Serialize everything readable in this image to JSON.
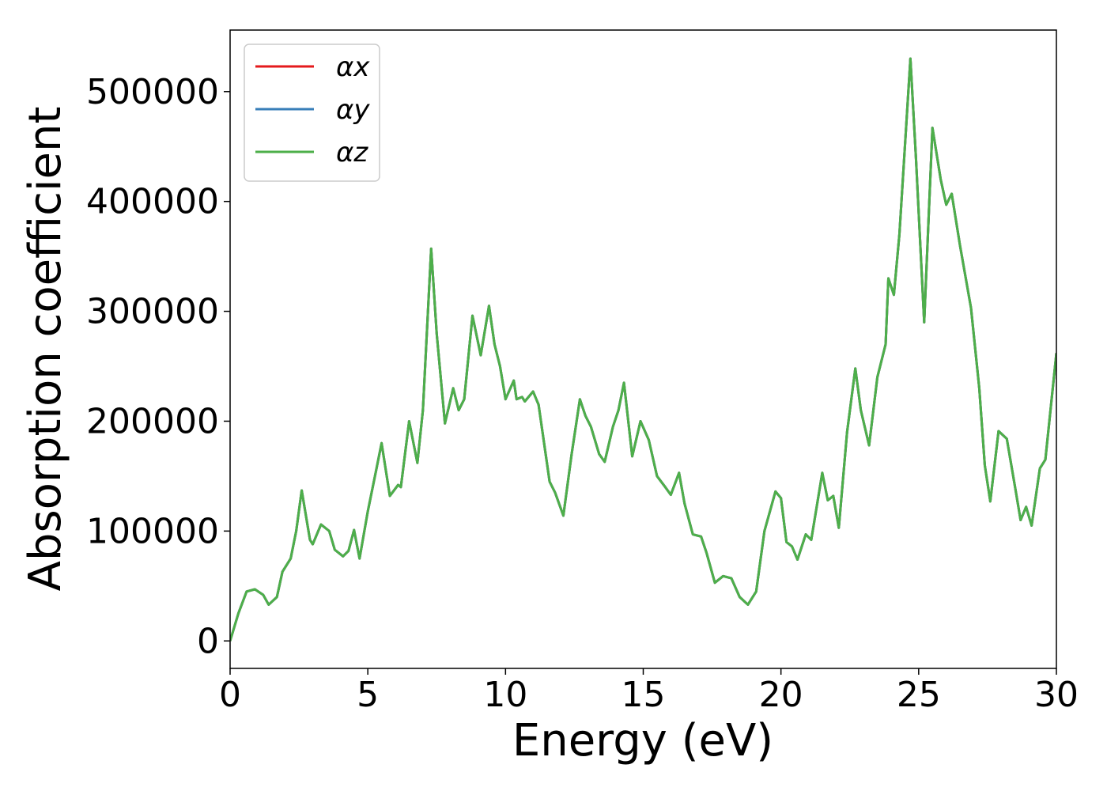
{
  "chart_data": {
    "type": "line",
    "xlabel": "Energy (eV)",
    "ylabel": "Absorption coefficient",
    "x": [
      0,
      0.3,
      0.6,
      0.9,
      1.2,
      1.4,
      1.7,
      1.9,
      2.2,
      2.4,
      2.6,
      2.9,
      3.0,
      3.3,
      3.6,
      3.8,
      4.1,
      4.3,
      4.5,
      4.7,
      5.0,
      5.3,
      5.5,
      5.8,
      6.1,
      6.2,
      6.5,
      6.8,
      7.0,
      7.3,
      7.5,
      7.8,
      8.1,
      8.3,
      8.5,
      8.8,
      9.1,
      9.4,
      9.6,
      9.8,
      10.0,
      10.3,
      10.4,
      10.6,
      10.7,
      11.0,
      11.2,
      11.4,
      11.6,
      11.8,
      12.1,
      12.4,
      12.7,
      12.9,
      13.1,
      13.4,
      13.6,
      13.9,
      14.1,
      14.3,
      14.6,
      14.9,
      15.2,
      15.5,
      15.8,
      16.0,
      16.3,
      16.5,
      16.8,
      17.1,
      17.3,
      17.6,
      17.9,
      18.2,
      18.5,
      18.8,
      19.1,
      19.4,
      19.8,
      20.0,
      20.2,
      20.4,
      20.6,
      20.9,
      21.1,
      21.5,
      21.7,
      21.9,
      22.1,
      22.4,
      22.7,
      22.9,
      23.2,
      23.5,
      23.8,
      23.9,
      24.1,
      24.3,
      24.7,
      24.9,
      25.2,
      25.5,
      25.8,
      26.0,
      26.2,
      26.5,
      26.9,
      27.2,
      27.4,
      27.6,
      27.9,
      28.2,
      28.5,
      28.7,
      28.9,
      29.1,
      29.4,
      29.6,
      30.0
    ],
    "series": [
      {
        "name": "αx",
        "color": "#e41a1c",
        "values": [
          0,
          25000,
          45000,
          47000,
          42000,
          33000,
          40000,
          63000,
          75000,
          100000,
          137000,
          92000,
          88000,
          106000,
          100000,
          83000,
          77000,
          82000,
          101000,
          75000,
          118000,
          155000,
          180000,
          132000,
          142000,
          140000,
          200000,
          162000,
          210000,
          357000,
          280000,
          198000,
          230000,
          210000,
          220000,
          296000,
          260000,
          305000,
          270000,
          250000,
          220000,
          237000,
          220000,
          222000,
          218000,
          227000,
          215000,
          180000,
          145000,
          135000,
          114000,
          170000,
          220000,
          205000,
          195000,
          170000,
          163000,
          195000,
          210000,
          235000,
          168000,
          200000,
          183000,
          150000,
          140000,
          133000,
          153000,
          125000,
          97000,
          95000,
          80000,
          53000,
          59000,
          57000,
          40000,
          33000,
          45000,
          100000,
          136000,
          130000,
          90000,
          86000,
          74000,
          97000,
          92000,
          153000,
          128000,
          132000,
          103000,
          190000,
          248000,
          210000,
          178000,
          240000,
          270000,
          330000,
          315000,
          370000,
          530000,
          440000,
          290000,
          467000,
          420000,
          397000,
          407000,
          360000,
          303000,
          230000,
          160000,
          127000,
          191000,
          184000,
          140000,
          110000,
          122000,
          105000,
          157000,
          165000,
          262000
        ]
      },
      {
        "name": "αy",
        "color": "#377eb8",
        "values": [
          0,
          25000,
          45000,
          47000,
          42000,
          33000,
          40000,
          63000,
          75000,
          100000,
          137000,
          92000,
          88000,
          106000,
          100000,
          83000,
          77000,
          82000,
          101000,
          75000,
          118000,
          155000,
          180000,
          132000,
          142000,
          140000,
          200000,
          162000,
          210000,
          357000,
          280000,
          198000,
          230000,
          210000,
          220000,
          296000,
          260000,
          305000,
          270000,
          250000,
          220000,
          237000,
          220000,
          222000,
          218000,
          227000,
          215000,
          180000,
          145000,
          135000,
          114000,
          170000,
          220000,
          205000,
          195000,
          170000,
          163000,
          195000,
          210000,
          235000,
          168000,
          200000,
          183000,
          150000,
          140000,
          133000,
          153000,
          125000,
          97000,
          95000,
          80000,
          53000,
          59000,
          57000,
          40000,
          33000,
          45000,
          100000,
          136000,
          130000,
          90000,
          86000,
          74000,
          97000,
          92000,
          153000,
          128000,
          132000,
          103000,
          190000,
          248000,
          210000,
          178000,
          240000,
          270000,
          330000,
          315000,
          370000,
          530000,
          440000,
          290000,
          467000,
          420000,
          397000,
          407000,
          360000,
          303000,
          230000,
          160000,
          127000,
          191000,
          184000,
          140000,
          110000,
          122000,
          105000,
          157000,
          165000,
          262000
        ]
      },
      {
        "name": "αz",
        "color": "#4daf4a",
        "values": [
          0,
          25000,
          45000,
          47000,
          42000,
          33000,
          40000,
          63000,
          75000,
          100000,
          137000,
          92000,
          88000,
          106000,
          100000,
          83000,
          77000,
          82000,
          101000,
          75000,
          118000,
          155000,
          180000,
          132000,
          142000,
          140000,
          200000,
          162000,
          210000,
          357000,
          280000,
          198000,
          230000,
          210000,
          220000,
          296000,
          260000,
          305000,
          270000,
          250000,
          220000,
          237000,
          220000,
          222000,
          218000,
          227000,
          215000,
          180000,
          145000,
          135000,
          114000,
          170000,
          220000,
          205000,
          195000,
          170000,
          163000,
          195000,
          210000,
          235000,
          168000,
          200000,
          183000,
          150000,
          140000,
          133000,
          153000,
          125000,
          97000,
          95000,
          80000,
          53000,
          59000,
          57000,
          40000,
          33000,
          45000,
          100000,
          136000,
          130000,
          90000,
          86000,
          74000,
          97000,
          92000,
          153000,
          128000,
          132000,
          103000,
          190000,
          248000,
          210000,
          178000,
          240000,
          270000,
          330000,
          315000,
          370000,
          530000,
          440000,
          290000,
          467000,
          420000,
          397000,
          407000,
          360000,
          303000,
          230000,
          160000,
          127000,
          191000,
          184000,
          140000,
          110000,
          122000,
          105000,
          157000,
          165000,
          262000
        ]
      }
    ],
    "xlim": [
      0,
      30
    ],
    "xticks": [
      0,
      5,
      10,
      15,
      20,
      25,
      30
    ],
    "ylim": [
      -25000,
      556000
    ],
    "yticks": [
      0,
      100000,
      200000,
      300000,
      400000,
      500000
    ],
    "grid": false,
    "legend": "upper left"
  }
}
